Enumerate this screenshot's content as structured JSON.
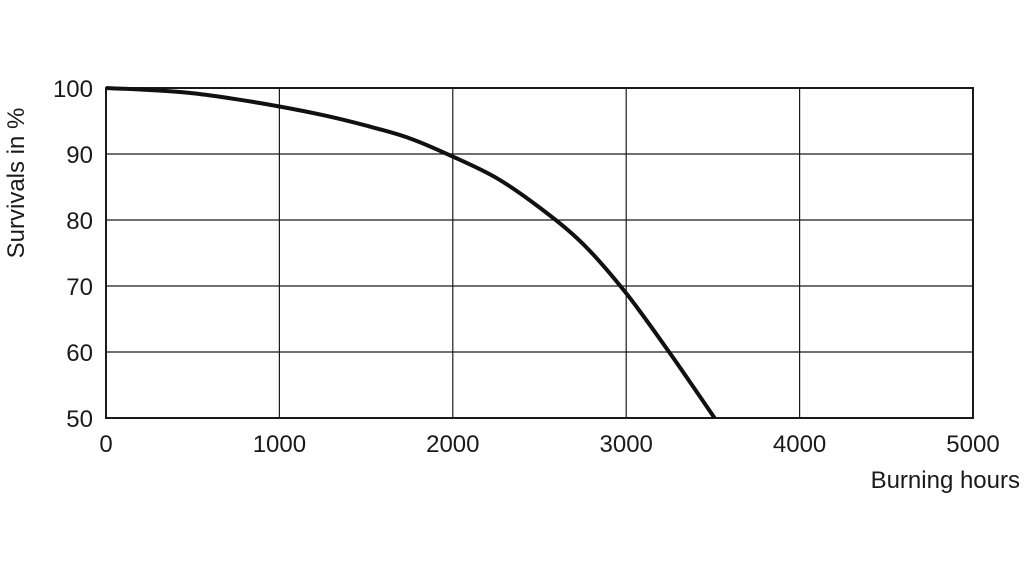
{
  "chart_data": {
    "type": "line",
    "title": "",
    "xlabel": "Burning hours",
    "ylabel": "Survivals in %",
    "xlim": [
      0,
      5000
    ],
    "ylim": [
      50,
      100
    ],
    "x_ticks": [
      0,
      1000,
      2000,
      3000,
      4000,
      5000
    ],
    "y_ticks": [
      50,
      60,
      70,
      80,
      90,
      100
    ],
    "x_tick_labels": [
      "0",
      "1000",
      "2000",
      "3000",
      "4000",
      "5000"
    ],
    "y_tick_labels": [
      "50",
      "60",
      "70",
      "80",
      "90",
      "100"
    ],
    "grid": true,
    "series": [
      {
        "color": "#111111",
        "x": [
          0,
          250,
          500,
          750,
          1000,
          1250,
          1500,
          1750,
          2000,
          2250,
          2500,
          2750,
          3000,
          3250,
          3510
        ],
        "y": [
          100,
          99.7,
          99.2,
          98.3,
          97.2,
          95.9,
          94.3,
          92.4,
          89.6,
          86.4,
          81.9,
          76.4,
          68.9,
          59.9,
          50
        ]
      }
    ]
  }
}
